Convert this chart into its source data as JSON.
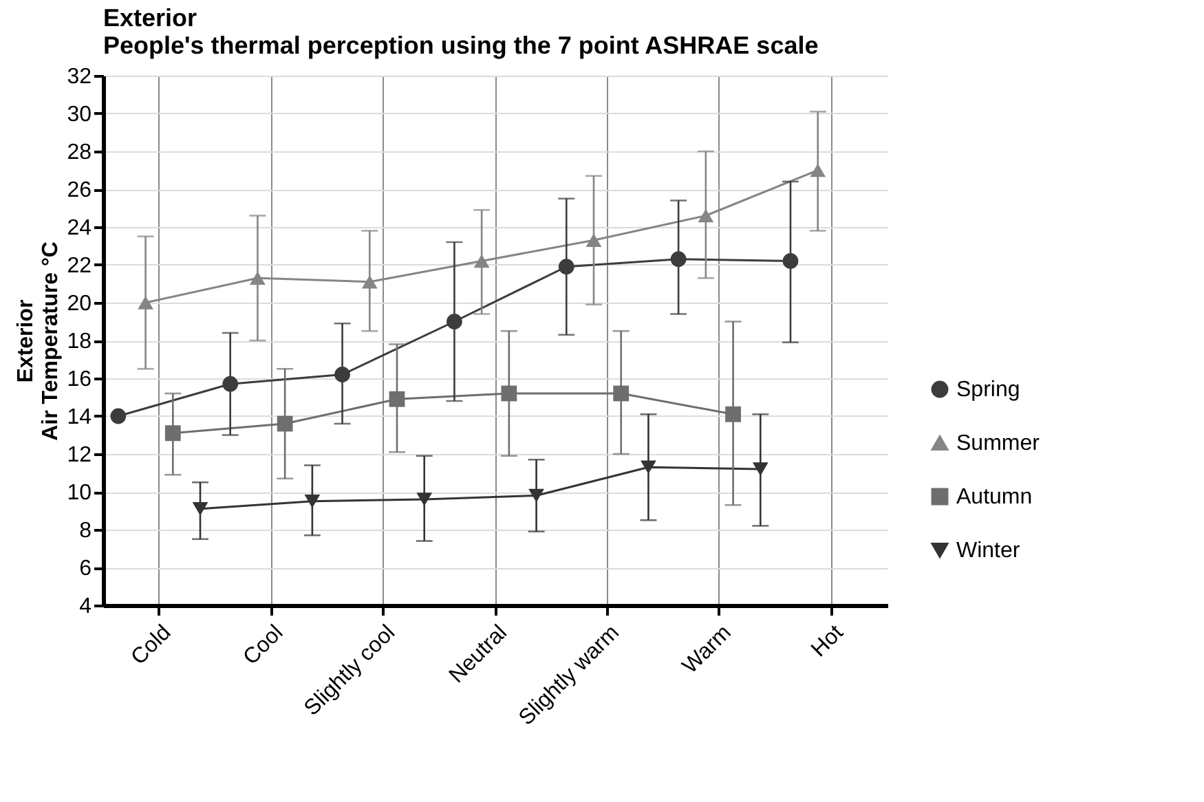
{
  "chart_data": {
    "type": "line",
    "title": "Exterior",
    "subtitle": "People's thermal perception using the 7 point ASHRAE scale",
    "ylabel": "Exterior\nAir Temperature °C",
    "categories": [
      "Cold",
      "Cool",
      "Slightly cool",
      "Neutral",
      "Slightly warm",
      "Warm",
      "Hot"
    ],
    "ylim": [
      4,
      32
    ],
    "yticks": [
      4,
      6,
      8,
      10,
      12,
      14,
      16,
      18,
      20,
      22,
      24,
      26,
      28,
      30,
      32
    ],
    "grid": true,
    "legend": "right",
    "line_style": "solid",
    "series": [
      {
        "name": "Spring",
        "color": "#3c3c3c",
        "marker": "circle",
        "values": [
          14.0,
          15.7,
          16.2,
          19.0,
          21.9,
          22.3,
          22.2
        ],
        "errors": [
          null,
          [
            13.0,
            18.4
          ],
          [
            13.6,
            18.9
          ],
          [
            14.8,
            23.2
          ],
          [
            18.3,
            25.5
          ],
          [
            19.4,
            25.4
          ],
          [
            17.9,
            26.4
          ]
        ]
      },
      {
        "name": "Summer",
        "color": "#858585",
        "marker": "triangle",
        "values": [
          20.0,
          21.3,
          21.1,
          22.2,
          23.3,
          24.6,
          27.0
        ],
        "errors": [
          [
            16.5,
            23.5
          ],
          [
            18.0,
            24.6
          ],
          [
            18.5,
            23.8
          ],
          [
            19.4,
            24.9
          ],
          [
            19.9,
            26.7
          ],
          [
            21.3,
            28.0
          ],
          [
            23.8,
            30.1
          ]
        ]
      },
      {
        "name": "Autumn",
        "color": "#6e6e6e",
        "marker": "square",
        "values": [
          13.1,
          13.6,
          14.9,
          15.2,
          15.2,
          14.1,
          null
        ],
        "errors": [
          [
            10.9,
            15.2
          ],
          [
            10.7,
            16.5
          ],
          [
            12.1,
            17.8
          ],
          [
            11.9,
            18.5
          ],
          [
            12.0,
            18.5
          ],
          [
            9.3,
            19.0
          ],
          null
        ]
      },
      {
        "name": "Winter",
        "color": "#333333",
        "marker": "triangle-down",
        "values": [
          9.1,
          9.5,
          9.6,
          9.8,
          11.3,
          11.2,
          null
        ],
        "errors": [
          [
            7.5,
            10.5
          ],
          [
            7.7,
            11.4
          ],
          [
            7.4,
            11.9
          ],
          [
            7.9,
            11.7
          ],
          [
            8.5,
            14.1
          ],
          [
            8.2,
            14.1
          ],
          null
        ]
      }
    ]
  }
}
